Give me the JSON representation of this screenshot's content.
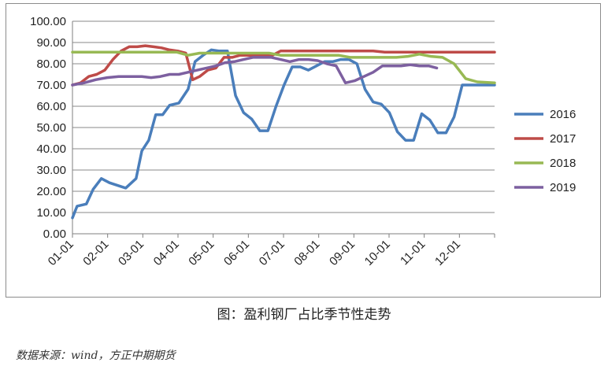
{
  "caption": "图：盈利钢厂占比季节性走势",
  "source": "数据来源：wind，方正中期期货",
  "chart_data": {
    "type": "line",
    "x_ticks": [
      "01-01",
      "02-01",
      "03-01",
      "04-01",
      "05-01",
      "06-01",
      "07-01",
      "08-01",
      "09-01",
      "10-01",
      "11-01",
      "12-01"
    ],
    "y_ticks": [
      "0.00",
      "10.00",
      "20.00",
      "30.00",
      "40.00",
      "50.00",
      "60.00",
      "70.00",
      "80.00",
      "90.00",
      "100.00"
    ],
    "ylim": [
      0,
      100
    ],
    "xlim": [
      0,
      365
    ],
    "grid": true,
    "legend_position": "right",
    "series": [
      {
        "name": "2016",
        "color": "#4a7ebb",
        "x": [
          0,
          4,
          12,
          18,
          25,
          32,
          46,
          55,
          60,
          66,
          72,
          78,
          84,
          92,
          100,
          106,
          113,
          120,
          127,
          134,
          141,
          148,
          155,
          162,
          169,
          176,
          183,
          190,
          197,
          204,
          211,
          218,
          225,
          232,
          239,
          246,
          253,
          260,
          267,
          274,
          281,
          288,
          295,
          302,
          309,
          316,
          323,
          330,
          337,
          344,
          351,
          358,
          365
        ],
        "y": [
          7.5,
          13,
          14,
          21,
          26,
          24,
          21.5,
          26,
          39,
          44,
          56,
          56,
          60.5,
          61.5,
          68,
          81,
          84,
          86.5,
          86,
          86,
          65,
          57,
          54,
          48.5,
          48.5,
          60,
          70,
          78.5,
          78.5,
          77,
          79,
          81,
          81,
          82,
          82,
          80,
          68,
          62,
          61,
          57,
          48,
          44,
          44,
          56.5,
          53.5,
          47.5,
          47.5,
          55,
          70,
          70,
          70,
          70,
          70
        ]
      },
      {
        "name": "2017",
        "color": "#be4b48",
        "x": [
          0,
          7,
          14,
          21,
          28,
          35,
          42,
          49,
          56,
          63,
          70,
          77,
          84,
          91,
          98,
          104,
          110,
          117,
          124,
          131,
          138,
          145,
          152,
          159,
          166,
          173,
          180,
          190,
          200,
          210,
          220,
          230,
          240,
          250,
          260,
          270,
          280,
          290,
          300,
          310,
          320,
          330,
          340,
          350,
          365
        ],
        "y": [
          70,
          71,
          74,
          75,
          77,
          82,
          86,
          88,
          88,
          88.5,
          88,
          87.5,
          86.5,
          86,
          85,
          72.5,
          74,
          77,
          78,
          83,
          83,
          84,
          84,
          84,
          84,
          84,
          86,
          86,
          86,
          86,
          86,
          86,
          86,
          86,
          86,
          85.5,
          85.5,
          85.5,
          85.5,
          85.5,
          85.5,
          85.5,
          85.5,
          85.5,
          85.5
        ]
      },
      {
        "name": "2018",
        "color": "#98b954",
        "x": [
          0,
          20,
          40,
          60,
          80,
          90,
          100,
          110,
          120,
          130,
          140,
          150,
          160,
          170,
          180,
          190,
          200,
          210,
          220,
          230,
          240,
          250,
          260,
          270,
          280,
          290,
          300,
          310,
          320,
          330,
          340,
          350,
          365
        ],
        "y": [
          85.5,
          85.5,
          85.5,
          85.5,
          85.5,
          85.5,
          84,
          85,
          85,
          85,
          85,
          85,
          85,
          85,
          84,
          84,
          84,
          84,
          84,
          84,
          83,
          83,
          83,
          83,
          83,
          83.5,
          84.5,
          83.5,
          83,
          80,
          73,
          71.5,
          71
        ]
      },
      {
        "name": "2019",
        "color": "#7d60a0",
        "x": [
          0,
          10,
          20,
          30,
          40,
          50,
          60,
          68,
          76,
          84,
          92,
          100,
          108,
          116,
          124,
          132,
          140,
          148,
          156,
          164,
          172,
          180,
          188,
          196,
          204,
          212,
          220,
          228,
          236,
          244,
          252,
          260,
          268,
          276,
          284,
          292,
          300,
          308,
          315
        ],
        "y": [
          70,
          71,
          72.5,
          73.5,
          74,
          74,
          74,
          73.5,
          74,
          75,
          75,
          76,
          77,
          78,
          79,
          80.5,
          81,
          82,
          83,
          83,
          83,
          82,
          81,
          82,
          82,
          81.5,
          80,
          79,
          71,
          72,
          74,
          76,
          79,
          79,
          79,
          79.5,
          79,
          79,
          78
        ]
      }
    ]
  }
}
